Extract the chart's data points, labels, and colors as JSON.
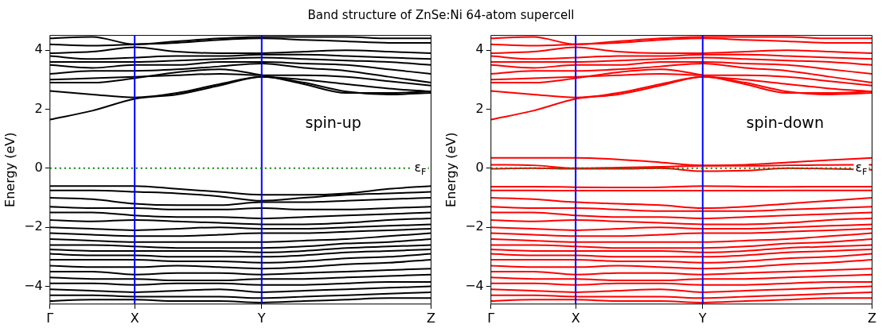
{
  "chart_data": [
    {
      "type": "line",
      "title": "Band structure of ZnSe:Ni 64-atom supercell",
      "ylabel": "Energy (eV)",
      "annotations": [
        "spin-up"
      ],
      "categories": [
        "Γ",
        null,
        "X",
        null,
        null,
        "Y",
        null,
        null,
        null,
        "Z"
      ],
      "ylim": [
        -4.6,
        4.5
      ],
      "yticks": [
        -4,
        -2,
        0,
        2,
        4
      ],
      "grid": false,
      "legend": false,
      "marker": "none",
      "line_style": "solid",
      "ref_lines": [
        {
          "axis": "x",
          "value": "X",
          "color": "#0000ff"
        },
        {
          "axis": "x",
          "value": "Y",
          "color": "#0000ff"
        },
        {
          "axis": "y",
          "value": 0,
          "label": "ε$_{F}$",
          "color": "#008000",
          "line_style": "dotted"
        }
      ],
      "series": [
        {
          "color": "#000000",
          "values": [
            1.65,
            1.95,
            2.35,
            2.5,
            2.8,
            3.1,
            2.9,
            2.6,
            2.5,
            2.55
          ]
        },
        {
          "color": "#000000",
          "values": [
            2.62,
            2.5,
            2.4,
            2.55,
            2.85,
            3.1,
            3.0,
            2.85,
            2.7,
            2.6
          ]
        },
        {
          "color": "#000000",
          "values": [
            2.9,
            2.9,
            3.05,
            3.25,
            3.35,
            3.15,
            2.85,
            2.55,
            2.55,
            2.6
          ]
        },
        {
          "color": "#000000",
          "values": [
            3.0,
            3.05,
            3.1,
            3.15,
            3.2,
            3.15,
            3.15,
            3.1,
            2.95,
            2.8
          ]
        },
        {
          "color": "#000000",
          "values": [
            3.2,
            3.3,
            3.3,
            3.35,
            3.45,
            3.55,
            3.4,
            3.3,
            3.1,
            2.9
          ]
        },
        {
          "color": "#000000",
          "values": [
            3.5,
            3.4,
            3.5,
            3.5,
            3.6,
            3.6,
            3.55,
            3.5,
            3.35,
            3.2
          ]
        },
        {
          "color": "#000000",
          "values": [
            3.6,
            3.6,
            3.6,
            3.65,
            3.7,
            3.75,
            3.7,
            3.65,
            3.6,
            3.5
          ]
        },
        {
          "color": "#000000",
          "values": [
            3.8,
            3.7,
            3.75,
            3.8,
            3.8,
            3.85,
            3.85,
            3.8,
            3.75,
            3.7
          ]
        },
        {
          "color": "#000000",
          "values": [
            3.9,
            3.95,
            4.1,
            3.95,
            3.9,
            3.9,
            3.95,
            4.0,
            3.95,
            3.9
          ]
        },
        {
          "color": "#000000",
          "values": [
            4.2,
            4.15,
            4.2,
            4.25,
            4.35,
            4.4,
            4.35,
            4.3,
            4.25,
            4.25
          ]
        },
        {
          "color": "#000000",
          "values": [
            4.4,
            4.45,
            4.2,
            4.3,
            4.4,
            4.45,
            4.45,
            4.45,
            4.4,
            4.4
          ]
        },
        {
          "color": "#000000",
          "values": [
            -0.6,
            -0.6,
            -0.6,
            -0.7,
            -0.8,
            -0.9,
            -0.9,
            -0.85,
            -0.7,
            -0.6
          ]
        },
        {
          "color": "#000000",
          "values": [
            -0.75,
            -0.75,
            -0.8,
            -0.85,
            -0.95,
            -1.1,
            -1.0,
            -0.9,
            -0.85,
            -0.8
          ]
        },
        {
          "color": "#000000",
          "values": [
            -1.0,
            -1.05,
            -1.2,
            -1.25,
            -1.25,
            -1.15,
            -1.15,
            -1.1,
            -1.05,
            -1.0
          ]
        },
        {
          "color": "#000000",
          "values": [
            -1.3,
            -1.35,
            -1.35,
            -1.4,
            -1.4,
            -1.35,
            -1.4,
            -1.4,
            -1.35,
            -1.3
          ]
        },
        {
          "color": "#000000",
          "values": [
            -1.5,
            -1.5,
            -1.6,
            -1.65,
            -1.65,
            -1.7,
            -1.65,
            -1.6,
            -1.55,
            -1.5
          ]
        },
        {
          "color": "#000000",
          "values": [
            -1.75,
            -1.8,
            -1.75,
            -1.8,
            -1.85,
            -1.9,
            -1.9,
            -1.85,
            -1.75,
            -1.7
          ]
        },
        {
          "color": "#000000",
          "values": [
            -2.0,
            -2.05,
            -2.1,
            -2.05,
            -2.0,
            -2.05,
            -2.05,
            -2.0,
            -1.95,
            -1.9
          ]
        },
        {
          "color": "#000000",
          "values": [
            -2.2,
            -2.25,
            -2.3,
            -2.3,
            -2.25,
            -2.2,
            -2.2,
            -2.15,
            -2.1,
            -2.05
          ]
        },
        {
          "color": "#000000",
          "values": [
            -2.4,
            -2.45,
            -2.5,
            -2.5,
            -2.5,
            -2.5,
            -2.45,
            -2.4,
            -2.3,
            -2.2
          ]
        },
        {
          "color": "#000000",
          "values": [
            -2.6,
            -2.6,
            -2.65,
            -2.7,
            -2.7,
            -2.7,
            -2.65,
            -2.55,
            -2.5,
            -2.4
          ]
        },
        {
          "color": "#000000",
          "values": [
            -2.75,
            -2.8,
            -2.8,
            -2.8,
            -2.8,
            -2.85,
            -2.8,
            -2.7,
            -2.65,
            -2.6
          ]
        },
        {
          "color": "#000000",
          "values": [
            -2.9,
            -2.95,
            -2.95,
            -3.0,
            -3.0,
            -3.0,
            -2.95,
            -2.85,
            -2.8,
            -2.75
          ]
        },
        {
          "color": "#000000",
          "values": [
            -3.1,
            -3.1,
            -3.1,
            -3.15,
            -3.15,
            -3.2,
            -3.15,
            -3.05,
            -3.0,
            -2.9
          ]
        },
        {
          "color": "#000000",
          "values": [
            -3.3,
            -3.35,
            -3.35,
            -3.3,
            -3.35,
            -3.4,
            -3.35,
            -3.25,
            -3.2,
            -3.1
          ]
        },
        {
          "color": "#000000",
          "values": [
            -3.5,
            -3.5,
            -3.6,
            -3.55,
            -3.55,
            -3.6,
            -3.55,
            -3.5,
            -3.45,
            -3.4
          ]
        },
        {
          "color": "#000000",
          "values": [
            -3.7,
            -3.75,
            -3.75,
            -3.8,
            -3.8,
            -3.75,
            -3.75,
            -3.7,
            -3.65,
            -3.6
          ]
        },
        {
          "color": "#000000",
          "values": [
            -3.9,
            -3.9,
            -3.95,
            -3.9,
            -3.9,
            -3.95,
            -3.95,
            -3.9,
            -3.85,
            -3.85
          ]
        },
        {
          "color": "#000000",
          "values": [
            -4.1,
            -4.15,
            -4.2,
            -4.15,
            -4.1,
            -4.2,
            -4.15,
            -4.1,
            -4.05,
            -4.0
          ]
        },
        {
          "color": "#000000",
          "values": [
            -4.3,
            -4.3,
            -4.35,
            -4.35,
            -4.35,
            -4.4,
            -4.35,
            -4.3,
            -4.25,
            -4.2
          ]
        },
        {
          "color": "#000000",
          "values": [
            -4.5,
            -4.45,
            -4.45,
            -4.5,
            -4.5,
            -4.55,
            -4.5,
            -4.45,
            -4.4,
            -4.4
          ]
        }
      ]
    },
    {
      "type": "line",
      "ylabel": "Energy (eV)",
      "annotations": [
        "spin-down"
      ],
      "categories": [
        "Γ",
        null,
        "X",
        null,
        null,
        "Y",
        null,
        null,
        null,
        "Z"
      ],
      "ylim": [
        -4.6,
        4.5
      ],
      "yticks": [
        -4,
        -2,
        0,
        2,
        4
      ],
      "grid": false,
      "legend": false,
      "marker": "none",
      "line_style": "solid",
      "ref_lines": [
        {
          "axis": "x",
          "value": "X",
          "color": "#0000ff"
        },
        {
          "axis": "x",
          "value": "Y",
          "color": "#0000ff"
        },
        {
          "axis": "y",
          "value": 0,
          "label": "ε$_{F}$",
          "color": "#008000",
          "line_style": "dotted"
        }
      ],
      "series": [
        {
          "color": "#ff0000",
          "values": [
            1.65,
            1.95,
            2.35,
            2.5,
            2.8,
            3.1,
            2.9,
            2.6,
            2.5,
            2.55
          ]
        },
        {
          "color": "#ff0000",
          "values": [
            2.62,
            2.5,
            2.4,
            2.55,
            2.85,
            3.1,
            3.0,
            2.85,
            2.7,
            2.6
          ]
        },
        {
          "color": "#ff0000",
          "values": [
            2.9,
            2.9,
            3.05,
            3.25,
            3.35,
            3.15,
            2.85,
            2.55,
            2.55,
            2.6
          ]
        },
        {
          "color": "#ff0000",
          "values": [
            3.0,
            3.05,
            3.1,
            3.15,
            3.2,
            3.15,
            3.15,
            3.1,
            2.95,
            2.8
          ]
        },
        {
          "color": "#ff0000",
          "values": [
            3.2,
            3.3,
            3.3,
            3.35,
            3.45,
            3.55,
            3.4,
            3.3,
            3.1,
            2.9
          ]
        },
        {
          "color": "#ff0000",
          "values": [
            3.5,
            3.4,
            3.5,
            3.5,
            3.6,
            3.6,
            3.55,
            3.5,
            3.35,
            3.2
          ]
        },
        {
          "color": "#ff0000",
          "values": [
            3.6,
            3.6,
            3.6,
            3.65,
            3.7,
            3.75,
            3.7,
            3.65,
            3.6,
            3.5
          ]
        },
        {
          "color": "#ff0000",
          "values": [
            3.8,
            3.7,
            3.75,
            3.8,
            3.8,
            3.85,
            3.85,
            3.8,
            3.75,
            3.7
          ]
        },
        {
          "color": "#ff0000",
          "values": [
            3.9,
            3.95,
            4.1,
            3.95,
            3.9,
            3.9,
            3.95,
            4.0,
            3.95,
            3.9
          ]
        },
        {
          "color": "#ff0000",
          "values": [
            4.2,
            4.15,
            4.2,
            4.25,
            4.35,
            4.4,
            4.35,
            4.3,
            4.25,
            4.25
          ]
        },
        {
          "color": "#ff0000",
          "values": [
            4.4,
            4.45,
            4.2,
            4.3,
            4.4,
            4.45,
            4.45,
            4.45,
            4.4,
            4.4
          ]
        },
        {
          "color": "#ff0000",
          "values": [
            0.35,
            0.35,
            0.35,
            0.3,
            0.2,
            0.1,
            0.12,
            0.2,
            0.28,
            0.35
          ]
        },
        {
          "color": "#ff0000",
          "values": [
            0.12,
            0.1,
            0.0,
            0.02,
            0.05,
            0.08,
            0.08,
            0.1,
            0.11,
            0.12
          ]
        },
        {
          "color": "#ff0000",
          "values": [
            -0.02,
            0,
            -0.02,
            -0.02,
            0,
            -0.1,
            -0.08,
            0,
            -0.02,
            -0.05
          ]
        },
        {
          "color": "#ff0000",
          "values": [
            -0.62,
            -0.62,
            -0.64,
            -0.65,
            -0.64,
            -0.6,
            -0.62,
            -0.63,
            -0.62,
            -0.62
          ]
        },
        {
          "color": "#ff0000",
          "values": [
            -0.75,
            -0.75,
            -0.76,
            -0.76,
            -0.76,
            -0.76,
            -0.76,
            -0.75,
            -0.75,
            -0.75
          ]
        },
        {
          "color": "#ff0000",
          "values": [
            -1.0,
            -1.05,
            -1.15,
            -1.2,
            -1.25,
            -1.35,
            -1.3,
            -1.2,
            -1.1,
            -1.0
          ]
        },
        {
          "color": "#ff0000",
          "values": [
            -1.3,
            -1.35,
            -1.35,
            -1.4,
            -1.45,
            -1.45,
            -1.45,
            -1.4,
            -1.35,
            -1.3
          ]
        },
        {
          "color": "#ff0000",
          "values": [
            -1.5,
            -1.5,
            -1.6,
            -1.65,
            -1.65,
            -1.7,
            -1.65,
            -1.6,
            -1.55,
            -1.5
          ]
        },
        {
          "color": "#ff0000",
          "values": [
            -1.75,
            -1.8,
            -1.75,
            -1.8,
            -1.85,
            -1.9,
            -1.9,
            -1.85,
            -1.75,
            -1.7
          ]
        },
        {
          "color": "#ff0000",
          "values": [
            -2.0,
            -2.05,
            -2.1,
            -2.05,
            -2.0,
            -2.05,
            -2.05,
            -2.0,
            -1.95,
            -1.9
          ]
        },
        {
          "color": "#ff0000",
          "values": [
            -2.2,
            -2.25,
            -2.3,
            -2.3,
            -2.25,
            -2.2,
            -2.2,
            -2.15,
            -2.1,
            -2.05
          ]
        },
        {
          "color": "#ff0000",
          "values": [
            -2.4,
            -2.45,
            -2.5,
            -2.5,
            -2.5,
            -2.5,
            -2.45,
            -2.4,
            -2.3,
            -2.2
          ]
        },
        {
          "color": "#ff0000",
          "values": [
            -2.6,
            -2.6,
            -2.65,
            -2.7,
            -2.7,
            -2.7,
            -2.65,
            -2.55,
            -2.5,
            -2.4
          ]
        },
        {
          "color": "#ff0000",
          "values": [
            -2.75,
            -2.8,
            -2.8,
            -2.8,
            -2.8,
            -2.85,
            -2.8,
            -2.7,
            -2.65,
            -2.6
          ]
        },
        {
          "color": "#ff0000",
          "values": [
            -2.9,
            -2.95,
            -2.95,
            -3.0,
            -3.0,
            -3.0,
            -2.95,
            -2.85,
            -2.8,
            -2.75
          ]
        },
        {
          "color": "#ff0000",
          "values": [
            -3.1,
            -3.1,
            -3.1,
            -3.15,
            -3.15,
            -3.2,
            -3.15,
            -3.05,
            -3.0,
            -2.9
          ]
        },
        {
          "color": "#ff0000",
          "values": [
            -3.3,
            -3.35,
            -3.35,
            -3.3,
            -3.35,
            -3.4,
            -3.35,
            -3.25,
            -3.2,
            -3.1
          ]
        },
        {
          "color": "#ff0000",
          "values": [
            -3.5,
            -3.5,
            -3.6,
            -3.55,
            -3.55,
            -3.6,
            -3.55,
            -3.5,
            -3.45,
            -3.4
          ]
        },
        {
          "color": "#ff0000",
          "values": [
            -3.7,
            -3.75,
            -3.75,
            -3.8,
            -3.8,
            -3.75,
            -3.75,
            -3.7,
            -3.65,
            -3.6
          ]
        },
        {
          "color": "#ff0000",
          "values": [
            -3.9,
            -3.9,
            -3.95,
            -3.9,
            -3.9,
            -3.95,
            -3.95,
            -3.9,
            -3.85,
            -3.85
          ]
        },
        {
          "color": "#ff0000",
          "values": [
            -4.1,
            -4.15,
            -4.2,
            -4.15,
            -4.1,
            -4.2,
            -4.15,
            -4.1,
            -4.05,
            -4.0
          ]
        },
        {
          "color": "#ff0000",
          "values": [
            -4.3,
            -4.3,
            -4.35,
            -4.35,
            -4.35,
            -4.4,
            -4.35,
            -4.3,
            -4.25,
            -4.2
          ]
        },
        {
          "color": "#ff0000",
          "values": [
            -4.5,
            -4.45,
            -4.45,
            -4.5,
            -4.5,
            -4.55,
            -4.5,
            -4.45,
            -4.4,
            -4.4
          ]
        }
      ]
    }
  ]
}
